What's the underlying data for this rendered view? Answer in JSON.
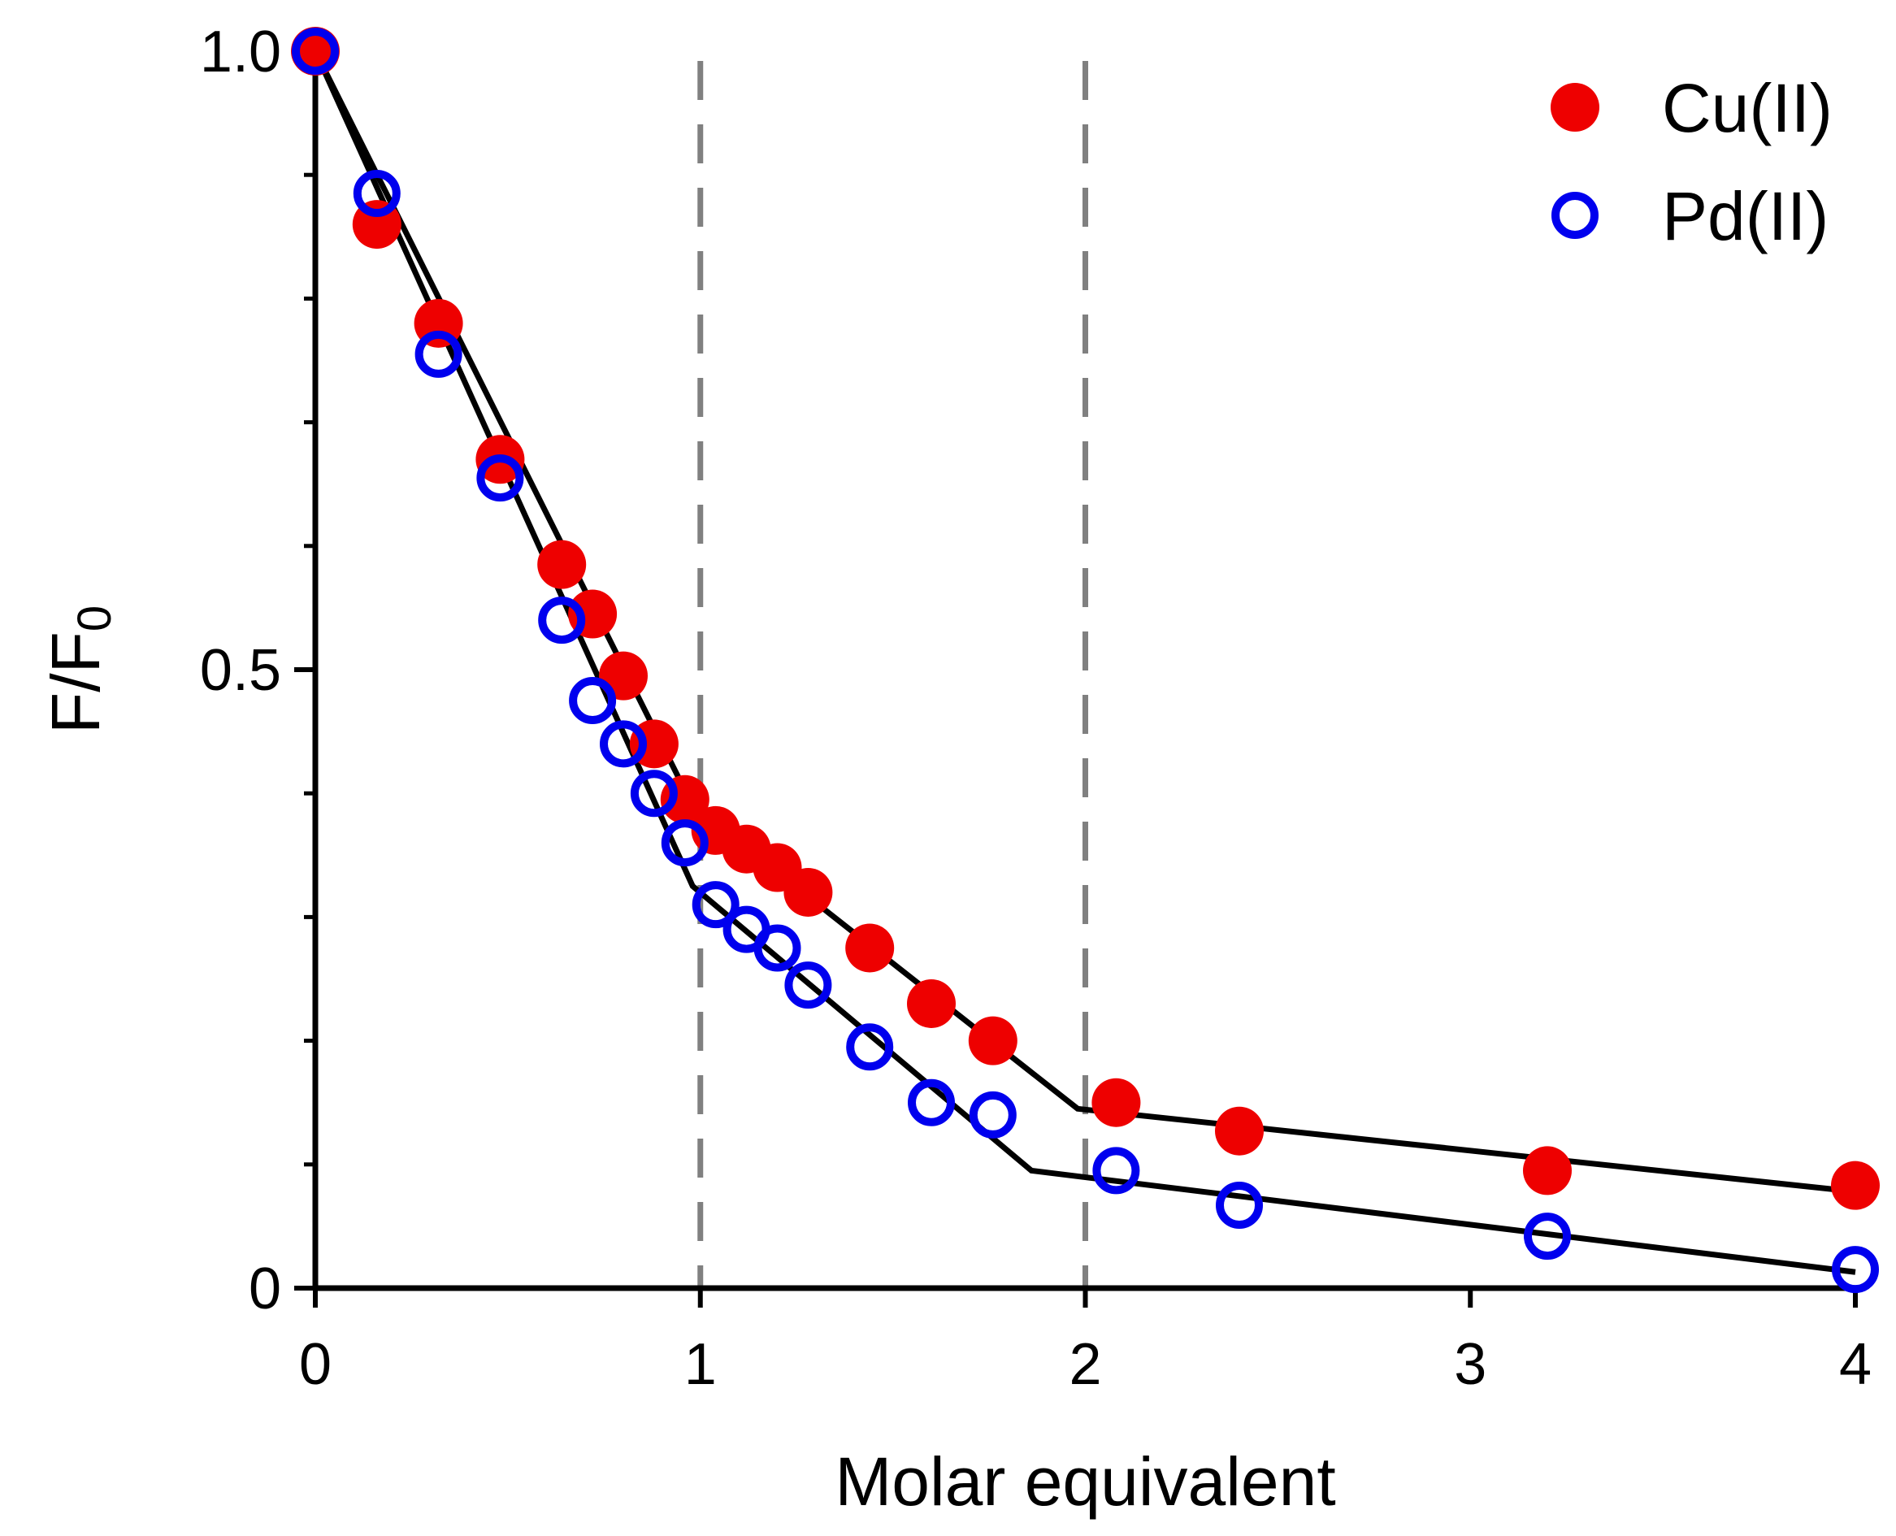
{
  "chart_data": {
    "type": "scatter",
    "xlabel": "Molar equivalent",
    "ylabel_main": "F/F",
    "ylabel_sub": "0",
    "xlim": [
      0,
      4
    ],
    "ylim": [
      0,
      1.0
    ],
    "x_ticks": [
      0,
      1,
      2,
      3,
      4
    ],
    "x_tick_labels": [
      "0",
      "1",
      "2",
      "3",
      "4"
    ],
    "y_ticks": [
      0,
      0.5,
      1.0
    ],
    "y_tick_labels": [
      "0",
      "0.5",
      "1.0"
    ],
    "y_minor_tick_step": 0.1,
    "grid": false,
    "legend_position": "top-right",
    "reference_lines": [
      {
        "axis": "x",
        "value": 1,
        "style": "dashed",
        "color": "#808080"
      },
      {
        "axis": "x",
        "value": 2,
        "style": "dashed",
        "color": "#808080"
      }
    ],
    "series": [
      {
        "name": "Cu(II)",
        "marker": "filled-circle",
        "color": "#ee0000",
        "x": [
          0,
          0.16,
          0.32,
          0.48,
          0.64,
          0.72,
          0.8,
          0.88,
          0.96,
          1.04,
          1.12,
          1.2,
          1.28,
          1.44,
          1.6,
          1.76,
          2.08,
          2.4,
          3.2,
          4.0
        ],
        "y": [
          1.0,
          0.86,
          0.78,
          0.67,
          0.585,
          0.545,
          0.495,
          0.44,
          0.395,
          0.37,
          0.355,
          0.34,
          0.32,
          0.275,
          0.23,
          0.2,
          0.15,
          0.127,
          0.095,
          0.083
        ],
        "fit_line": {
          "x": [
            0,
            0.98,
            1.98,
            4.0
          ],
          "y": [
            1.0,
            0.39,
            0.145,
            0.078
          ]
        }
      },
      {
        "name": "Pd(II)",
        "marker": "open-circle",
        "color": "#0000ee",
        "x": [
          0,
          0.16,
          0.32,
          0.48,
          0.64,
          0.72,
          0.8,
          0.88,
          0.96,
          1.04,
          1.12,
          1.2,
          1.28,
          1.44,
          1.6,
          1.76,
          2.08,
          2.4,
          3.2,
          4.0
        ],
        "y": [
          1.0,
          0.885,
          0.755,
          0.655,
          0.54,
          0.475,
          0.44,
          0.4,
          0.36,
          0.31,
          0.29,
          0.275,
          0.245,
          0.195,
          0.15,
          0.14,
          0.095,
          0.067,
          0.042,
          0.015
        ],
        "fit_line": {
          "x": [
            0,
            0.98,
            1.86,
            4.0
          ],
          "y": [
            1.0,
            0.325,
            0.095,
            0.013
          ]
        }
      }
    ]
  }
}
